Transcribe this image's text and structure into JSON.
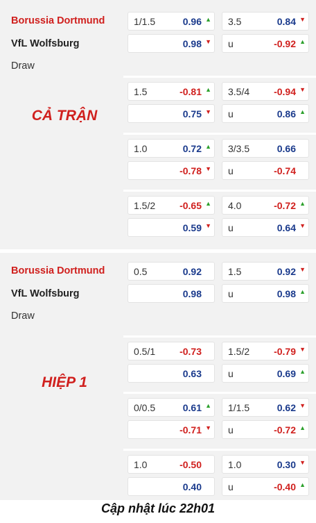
{
  "teams": {
    "home": "Borussia Dortmund",
    "away": "VfL Wolfsburg",
    "draw": "Draw"
  },
  "sections": [
    {
      "title": "CẢ TRẬN",
      "groups": [
        {
          "ah_line": "1/1.5",
          "ah_home": "0.96",
          "ah_home_dir": "up",
          "ah_away": "0.98",
          "ah_away_dir": "down",
          "ou_line": "3.5",
          "ou_over": "0.84",
          "ou_over_dir": "down",
          "ou_under_label": "u",
          "ou_under": "-0.92",
          "ou_under_dir": "up"
        },
        {
          "ah_line": "1.5",
          "ah_home": "-0.81",
          "ah_home_dir": "up",
          "ah_away": "0.75",
          "ah_away_dir": "down",
          "ou_line": "3.5/4",
          "ou_over": "-0.94",
          "ou_over_dir": "down",
          "ou_under_label": "u",
          "ou_under": "0.86",
          "ou_under_dir": "up"
        },
        {
          "ah_line": "1.0",
          "ah_home": "0.72",
          "ah_home_dir": "up",
          "ah_away": "-0.78",
          "ah_away_dir": "down",
          "ou_line": "3/3.5",
          "ou_over": "0.66",
          "ou_over_dir": "",
          "ou_under_label": "u",
          "ou_under": "-0.74",
          "ou_under_dir": ""
        },
        {
          "ah_line": "1.5/2",
          "ah_home": "-0.65",
          "ah_home_dir": "up",
          "ah_away": "0.59",
          "ah_away_dir": "down",
          "ou_line": "4.0",
          "ou_over": "-0.72",
          "ou_over_dir": "up",
          "ou_under_label": "u",
          "ou_under": "0.64",
          "ou_under_dir": "down"
        }
      ]
    },
    {
      "title": "HIỆP 1",
      "groups": [
        {
          "ah_line": "0.5",
          "ah_home": "0.92",
          "ah_home_dir": "",
          "ah_away": "0.98",
          "ah_away_dir": "",
          "ou_line": "1.5",
          "ou_over": "0.92",
          "ou_over_dir": "down",
          "ou_under_label": "u",
          "ou_under": "0.98",
          "ou_under_dir": "up"
        },
        {
          "ah_line": "0.5/1",
          "ah_home": "-0.73",
          "ah_home_dir": "",
          "ah_away": "0.63",
          "ah_away_dir": "",
          "ou_line": "1.5/2",
          "ou_over": "-0.79",
          "ou_over_dir": "down",
          "ou_under_label": "u",
          "ou_under": "0.69",
          "ou_under_dir": "up"
        },
        {
          "ah_line": "0/0.5",
          "ah_home": "0.61",
          "ah_home_dir": "up",
          "ah_away": "-0.71",
          "ah_away_dir": "down",
          "ou_line": "1/1.5",
          "ou_over": "0.62",
          "ou_over_dir": "down",
          "ou_under_label": "u",
          "ou_under": "-0.72",
          "ou_under_dir": "up"
        },
        {
          "ah_line": "1.0",
          "ah_home": "-0.50",
          "ah_home_dir": "",
          "ah_away": "0.40",
          "ah_away_dir": "",
          "ou_line": "1.0",
          "ou_over": "0.30",
          "ou_over_dir": "down",
          "ou_under_label": "u",
          "ou_under": "-0.40",
          "ou_under_dir": "up"
        }
      ]
    }
  ],
  "footer": "Cập nhật lúc 22h01"
}
